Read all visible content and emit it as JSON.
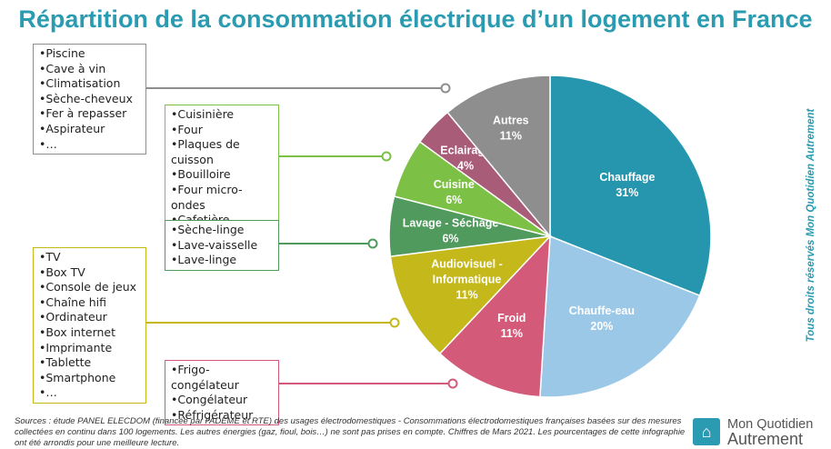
{
  "title": "Répartition de la consommation électrique d’un logement en France",
  "credit": "Tous droits réservés Mon Quotidien Autrement",
  "sources": "Sources : étude PANEL ELECDOM (financée par l’ADEME et RTE) des usages électrodomestiques - Consommations électrodomestiques françaises basées sur des mesures collectées en continu dans 100 logements. Les autres énergies (gaz, fioul, bois…) ne sont pas prises en compte. Chiffres de Mars 2021. Les pourcentages de cette infographie ont été arrondis pour une meilleure lecture.",
  "logo": {
    "line1": "Mon Quotidien",
    "line2": "Autrement",
    "icon": "house-leaf-icon"
  },
  "chart_data": {
    "type": "pie",
    "title": "Répartition de la consommation électrique d’un logement en France",
    "unit": "%",
    "slices": [
      {
        "label": "Chauffage",
        "value": 31,
        "color": "#2596ad"
      },
      {
        "label": "Chauffe-eau",
        "value": 20,
        "color": "#9cc8e8"
      },
      {
        "label": "Froid",
        "value": 11,
        "color": "#d45a7a"
      },
      {
        "label": "Audiovisuel - Informatique",
        "value": 11,
        "color": "#c5b81a"
      },
      {
        "label": "Lavage - Séchage",
        "value": 6,
        "color": "#4f9a5c"
      },
      {
        "label": "Cuisine",
        "value": 6,
        "color": "#7cc045"
      },
      {
        "label": "Eclairage",
        "value": 4,
        "color": "#a85c78"
      },
      {
        "label": "Autres",
        "value": 11,
        "color": "#8e8e8e"
      }
    ],
    "legend_boxes": [
      {
        "category": "Autres",
        "color": "#8e8e8e",
        "items": [
          "Piscine",
          "Cave à vin",
          "Climatisation",
          "Sèche-cheveux",
          "Fer à repasser",
          "Aspirateur",
          "…"
        ]
      },
      {
        "category": "Cuisine",
        "color": "#7cc045",
        "items": [
          "Cuisinière",
          "Four",
          "Plaques de cuisson",
          "Bouilloire",
          "Four micro-ondes",
          "Cafetière",
          "…"
        ]
      },
      {
        "category": "Lavage - Séchage",
        "color": "#4f9a5c",
        "items": [
          "Sèche-linge",
          "Lave-vaisselle",
          "Lave-linge"
        ]
      },
      {
        "category": "Audiovisuel - Informatique",
        "color": "#c5b81a",
        "items": [
          "TV",
          "Box TV",
          "Console de jeux",
          "Chaîne hifi",
          "Ordinateur",
          "Box internet",
          "Imprimante",
          "Tablette",
          "Smartphone",
          "…"
        ]
      },
      {
        "category": "Froid",
        "color": "#d45a7a",
        "items": [
          "Frigo-congélateur",
          "Congélateur",
          "Réfrigérateur"
        ]
      }
    ]
  }
}
